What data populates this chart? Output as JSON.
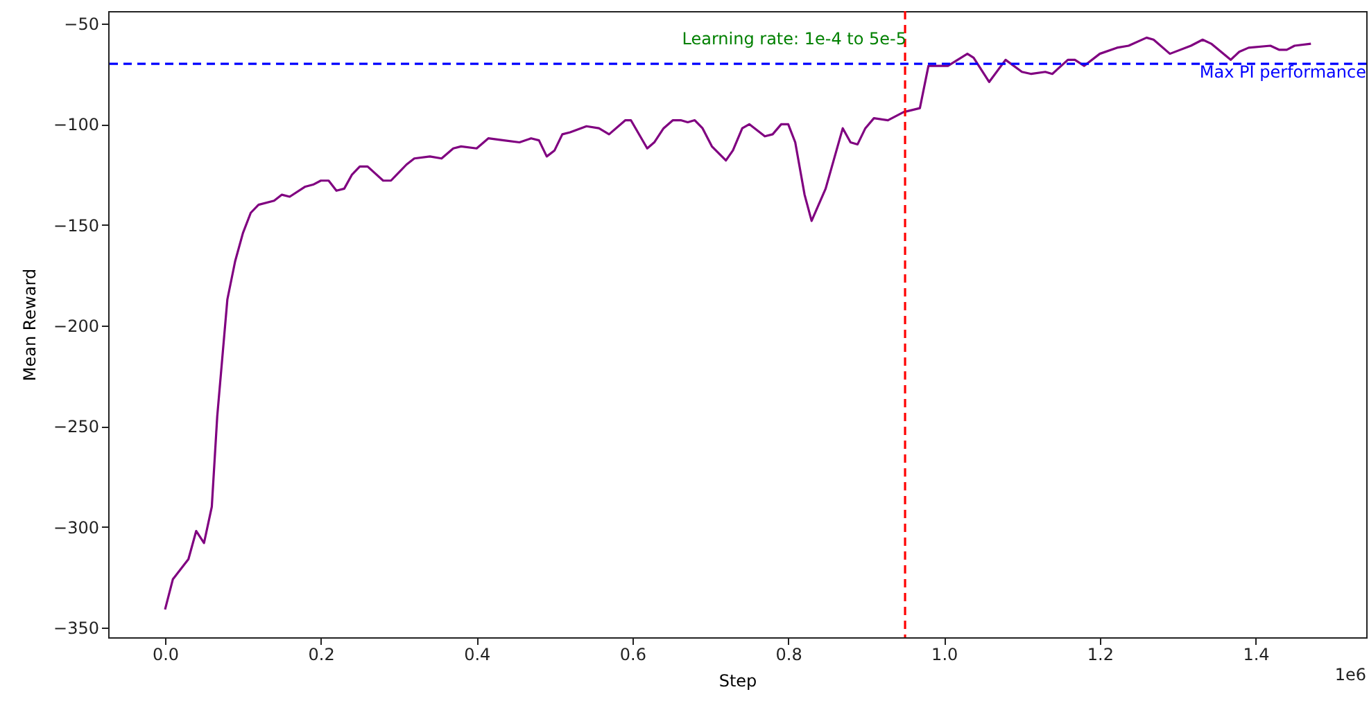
{
  "chart_data": {
    "type": "line",
    "xlabel": "Step",
    "ylabel": "Mean Reward",
    "x": [
      0,
      0.01,
      0.03,
      0.04,
      0.05,
      0.06,
      0.067,
      0.08,
      0.09,
      0.1,
      0.11,
      0.12,
      0.14,
      0.15,
      0.16,
      0.18,
      0.19,
      0.2,
      0.21,
      0.22,
      0.23,
      0.24,
      0.25,
      0.26,
      0.28,
      0.29,
      0.31,
      0.32,
      0.34,
      0.355,
      0.37,
      0.38,
      0.4,
      0.415,
      0.435,
      0.455,
      0.47,
      0.48,
      0.49,
      0.5,
      0.51,
      0.52,
      0.541,
      0.557,
      0.57,
      0.591,
      0.598,
      0.619,
      0.628,
      0.64,
      0.652,
      0.662,
      0.671,
      0.68,
      0.69,
      0.702,
      0.72,
      0.729,
      0.741,
      0.75,
      0.77,
      0.78,
      0.791,
      0.8,
      0.809,
      0.821,
      0.83,
      0.848,
      0.87,
      0.88,
      0.889,
      0.899,
      0.91,
      0.928,
      0.948,
      0.969,
      0.98,
      1.005,
      1.03,
      1.038,
      1.058,
      1.079,
      1.1,
      1.112,
      1.13,
      1.139,
      1.159,
      1.168,
      1.18,
      1.2,
      1.222,
      1.237,
      1.26,
      1.269,
      1.29,
      1.317,
      1.332,
      1.343,
      1.368,
      1.379,
      1.391,
      1.419,
      1.43,
      1.44,
      1.45,
      1.471
    ],
    "series": [
      {
        "color": "#800080",
        "values": [
          -341,
          -326,
          -316,
          -302,
          -308,
          -290,
          -245,
          -187,
          -168,
          -154,
          -144,
          -140,
          -138,
          -135,
          -136,
          -131,
          -130,
          -128,
          -128,
          -133,
          -132,
          -125,
          -121,
          -121,
          -128,
          -128,
          -120,
          -117,
          -116,
          -117,
          -112,
          -111,
          -112,
          -107,
          -108,
          -109,
          -107,
          -108,
          -116,
          -113,
          -105,
          -104,
          -101,
          -102,
          -105,
          -98,
          -98,
          -112,
          -109,
          -102,
          -98,
          -98,
          -99,
          -98,
          -102,
          -111,
          -118,
          -113,
          -102,
          -100,
          -106,
          -105,
          -100,
          -100,
          -109,
          -135,
          -148,
          -132,
          -102,
          -109,
          -110,
          -102,
          -97,
          -98,
          -94,
          -92,
          -71,
          -71,
          -65,
          -67,
          -79,
          -68,
          -74,
          -75,
          -74,
          -75,
          -68,
          -68,
          -71,
          -65,
          -62,
          -61,
          -57,
          -58,
          -65,
          -61,
          -58,
          -60,
          -68,
          -64,
          -62,
          -61,
          -63,
          -63,
          -61,
          -60
        ]
      }
    ],
    "xlim": [
      -0.073,
      1.542
    ],
    "ylim": [
      -354.8,
      -43.8
    ],
    "xticks": [
      {
        "value": 0,
        "label": "0.0"
      },
      0.2,
      0.4,
      0.6,
      0.8,
      {
        "value": 1,
        "label": "1.0"
      },
      1.2,
      1.4
    ],
    "yticks": [
      -350,
      -300,
      -250,
      -200,
      -150,
      -100,
      -50
    ],
    "ref_lines": [
      {
        "axis": "x",
        "value": 0.95,
        "label": "Learning rate: 1e-4 to 5e-5",
        "color": "#ff0000",
        "line_style": "dashed"
      },
      {
        "axis": "y",
        "value": -70,
        "label": "Max PI performance",
        "color": "#0000ff",
        "line_style": "dashed"
      }
    ],
    "annotations": [
      "1e6"
    ],
    "grid": false,
    "marker": "none",
    "line_style": "solid"
  }
}
